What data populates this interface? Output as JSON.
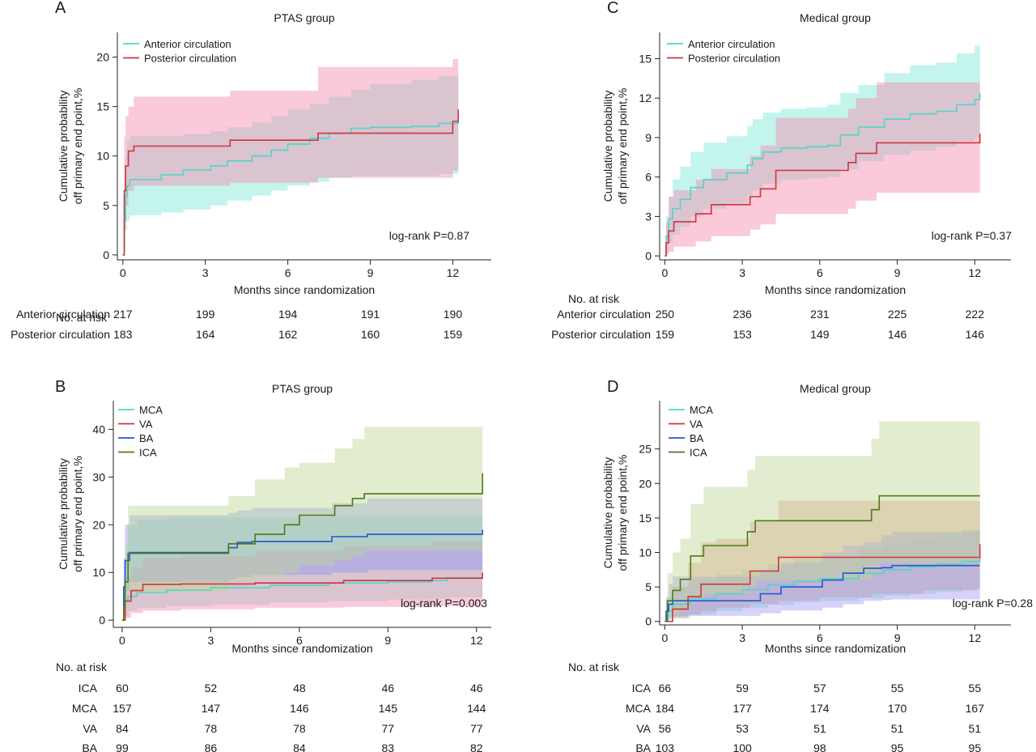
{
  "chart_data": [
    {
      "id": "A",
      "panel_letter": "A",
      "type": "line",
      "title": "PTAS group",
      "xlabel": "Months since randomization",
      "ylabel": [
        "Cumulative probability",
        "off primary end point,%"
      ],
      "xticks": [
        0,
        3,
        6,
        9,
        12
      ],
      "yticks": [
        0,
        5,
        10,
        15,
        20
      ],
      "xlim": [
        -0.2,
        13.4
      ],
      "ylim": [
        -0.5,
        22.5
      ],
      "annotation": "log-rank P=0.87",
      "legend_position": "top-left",
      "series": [
        {
          "name": "Anterior circulation",
          "color": "#4fd6c8",
          "band_color": "#7be8d8",
          "x": [
            0,
            0.05,
            0.1,
            0.15,
            0.25,
            1.4,
            2.2,
            3.2,
            3.8,
            4.7,
            5.4,
            6.0,
            6.8,
            7.5,
            8.3,
            9.0,
            10.5,
            11.5,
            12.2
          ],
          "y": [
            0,
            3.5,
            6.0,
            7.0,
            7.6,
            8.1,
            8.6,
            9.0,
            9.5,
            10.0,
            10.6,
            11.2,
            11.8,
            12.3,
            12.8,
            12.9,
            13.0,
            13.3,
            13.7
          ],
          "lower": [
            0,
            0.5,
            2.5,
            3.5,
            4.0,
            4.3,
            4.6,
            5.0,
            5.5,
            6.0,
            6.5,
            7.0,
            7.4,
            7.8,
            8.0,
            8.0,
            8.0,
            8.2,
            8.3
          ],
          "upper": [
            0,
            7.0,
            10.0,
            11.5,
            12.0,
            12.0,
            12.2,
            12.5,
            12.9,
            13.4,
            14.0,
            14.7,
            15.3,
            16.0,
            16.7,
            17.3,
            17.7,
            18.1,
            18.3
          ]
        },
        {
          "name": "Posterior circulation",
          "color": "#d3323c",
          "band_color": "#f48aac",
          "x": [
            0,
            0.05,
            0.1,
            0.2,
            0.4,
            3.9,
            7.1,
            12.0,
            12.2
          ],
          "y": [
            0,
            6.5,
            9.0,
            10.5,
            11.0,
            11.6,
            12.3,
            13.5,
            14.7
          ],
          "lower": [
            0,
            2.5,
            5.0,
            6.5,
            7.0,
            7.3,
            7.8,
            8.5,
            8.5
          ],
          "upper": [
            0,
            12.0,
            14.0,
            15.0,
            16.0,
            16.6,
            19.0,
            19.8,
            19.8
          ]
        }
      ],
      "risk_table": {
        "heading": "No. at risk",
        "rows": [
          {
            "label": "Anterior circulation",
            "values": [
              "217",
              "199",
              "194",
              "191",
              "190"
            ]
          },
          {
            "label": "Posterior circulation",
            "values": [
              "183",
              "164",
              "162",
              "160",
              "159"
            ]
          }
        ]
      }
    },
    {
      "id": "C",
      "panel_letter": "C",
      "type": "line",
      "title": "Medical group",
      "xlabel": "Months since randomization",
      "ylabel": [
        "Cumulative probability",
        "off primary end point,%"
      ],
      "xticks": [
        0,
        3,
        6,
        9,
        12
      ],
      "yticks": [
        0,
        3,
        6,
        9,
        12,
        15
      ],
      "xlim": [
        -0.2,
        13.4
      ],
      "ylim": [
        -0.3,
        17.0
      ],
      "annotation": "log-rank P=0.37",
      "legend_position": "top-left",
      "series": [
        {
          "name": "Anterior circulation",
          "color": "#4fd6c8",
          "band_color": "#7be8d8",
          "x": [
            0,
            0.05,
            0.15,
            0.3,
            0.6,
            1.0,
            1.5,
            2.4,
            3.2,
            3.4,
            3.8,
            4.5,
            5.5,
            6.3,
            6.8,
            7.5,
            8.5,
            9.5,
            10.5,
            11.3,
            12.0,
            12.2
          ],
          "y": [
            0,
            1.5,
            2.8,
            3.6,
            4.3,
            5.2,
            5.8,
            6.3,
            6.9,
            7.4,
            7.9,
            8.2,
            8.3,
            8.4,
            9.2,
            9.8,
            10.4,
            10.8,
            11.0,
            11.5,
            11.9,
            12.4
          ],
          "lower": [
            0,
            0.2,
            1.0,
            1.6,
            2.2,
            3.0,
            3.6,
            4.0,
            4.6,
            5.0,
            5.5,
            5.8,
            5.9,
            6.0,
            6.6,
            7.2,
            7.7,
            8.0,
            8.3,
            8.7,
            9.0,
            9.3
          ],
          "upper": [
            0,
            3.0,
            4.5,
            5.8,
            6.8,
            7.9,
            8.6,
            9.1,
            9.9,
            10.4,
            10.9,
            11.2,
            11.3,
            11.5,
            12.4,
            13.0,
            13.9,
            14.5,
            14.7,
            15.4,
            16.0,
            16.4
          ]
        },
        {
          "name": "Posterior circulation",
          "color": "#d3323c",
          "band_color": "#f48aac",
          "x": [
            0,
            0.05,
            0.15,
            0.35,
            1.2,
            1.8,
            3.3,
            3.7,
            4.3,
            7.1,
            7.4,
            8.2,
            12.2
          ],
          "y": [
            0,
            1.0,
            1.9,
            2.6,
            3.2,
            3.9,
            4.5,
            5.1,
            6.5,
            7.1,
            7.8,
            8.6,
            9.3
          ],
          "lower": [
            0,
            0.1,
            0.3,
            0.7,
            1.1,
            1.5,
            2.0,
            2.4,
            3.2,
            3.6,
            4.2,
            4.8,
            3.9
          ],
          "upper": [
            0,
            2.5,
            4.5,
            5.0,
            5.8,
            6.6,
            7.6,
            8.4,
            10.5,
            11.2,
            12.0,
            13.2,
            13.2
          ]
        }
      ],
      "risk_table": {
        "heading": "No. at risk",
        "rows": [
          {
            "label": "Anterior circulation",
            "values": [
              "250",
              "236",
              "231",
              "225",
              "222"
            ]
          },
          {
            "label": "Posterior circulation",
            "values": [
              "159",
              "153",
              "149",
              "146",
              "146"
            ]
          }
        ]
      }
    },
    {
      "id": "B",
      "panel_letter": "B",
      "type": "line",
      "title": "PTAS group",
      "xlabel": "Months since randomization",
      "ylabel": [
        "Cumulative probability",
        "off primary end point,%"
      ],
      "xticks": [
        0,
        3,
        6,
        9,
        12
      ],
      "yticks": [
        0,
        10,
        20,
        30,
        40
      ],
      "xlim": [
        -0.3,
        12.5
      ],
      "ylim": [
        -1.5,
        46.0
      ],
      "annotation": "log-rank P=0.003",
      "legend_position": "top-left",
      "series": [
        {
          "name": "MCA",
          "color": "#4fd6c8",
          "band_color": "#7be8d8",
          "x": [
            0,
            0.1,
            0.2,
            0.5,
            1.5,
            3.0,
            5.0,
            7.0,
            9.0,
            10.5,
            11.0,
            12.2
          ],
          "y": [
            0,
            4.0,
            5.0,
            5.8,
            6.3,
            6.8,
            7.3,
            7.8,
            8.0,
            8.3,
            8.9,
            8.9
          ],
          "lower": [
            0,
            1.0,
            2.0,
            2.5,
            3.0,
            3.3,
            3.7,
            4.0,
            4.3,
            4.5,
            4.8,
            4.8
          ],
          "upper": [
            0,
            14.0,
            20.0,
            21.0,
            21.5,
            21.5,
            21.5,
            22.0,
            22.0,
            22.0,
            22.0,
            22.0
          ]
        },
        {
          "name": "VA",
          "color": "#d3323c",
          "band_color": "#f48aac",
          "x": [
            0,
            0.1,
            0.3,
            0.7,
            2.0,
            4.5,
            7.5,
            10.5,
            12.2
          ],
          "y": [
            0,
            4.0,
            6.2,
            7.5,
            7.6,
            7.8,
            8.3,
            8.8,
            10.0
          ],
          "lower": [
            0,
            0.5,
            1.5,
            2.0,
            2.3,
            2.6,
            2.8,
            3.0,
            3.0
          ],
          "upper": [
            0,
            9.0,
            11.0,
            13.0,
            13.5,
            14.5,
            15.5,
            16.5,
            18.0
          ]
        },
        {
          "name": "BA",
          "color": "#2456d6",
          "band_color": "#8e97f2",
          "x": [
            0,
            0.05,
            0.1,
            0.25,
            3.6,
            3.9,
            4.4,
            7.1,
            8.3,
            12.2
          ],
          "y": [
            0,
            7.0,
            12.5,
            14.2,
            15.2,
            16.3,
            16.5,
            17.5,
            18.0,
            19.0
          ],
          "lower": [
            0,
            2.0,
            6.0,
            8.0,
            8.5,
            9.0,
            9.5,
            10.0,
            10.5,
            11.0
          ],
          "upper": [
            0,
            13.0,
            20.0,
            22.0,
            22.5,
            23.0,
            23.5,
            24.5,
            25.5,
            27.5
          ]
        },
        {
          "name": "ICA",
          "color": "#4e7a16",
          "band_color": "#bfd694",
          "x": [
            0,
            0.05,
            0.1,
            0.2,
            3.6,
            4.5,
            5.5,
            6.0,
            7.2,
            7.8,
            8.2,
            12.1,
            12.2
          ],
          "y": [
            0,
            3.0,
            8.0,
            14.0,
            16.0,
            18.0,
            20.0,
            22.0,
            24.0,
            25.5,
            26.5,
            26.5,
            30.8
          ],
          "lower": [
            0,
            0.5,
            3.0,
            6.0,
            8.0,
            9.0,
            10.0,
            11.5,
            12.5,
            13.5,
            14.5,
            14.5,
            16.0
          ],
          "upper": [
            0,
            8.0,
            16.0,
            24.0,
            26.0,
            29.5,
            32.0,
            33.0,
            36.0,
            38.0,
            40.5,
            40.5,
            40.5
          ]
        }
      ],
      "risk_table": {
        "heading": "No. at risk",
        "rows": [
          {
            "label": "ICA",
            "values": [
              "60",
              "52",
              "48",
              "46",
              "46"
            ]
          },
          {
            "label": "MCA",
            "values": [
              "157",
              "147",
              "146",
              "145",
              "144"
            ]
          },
          {
            "label": "VA",
            "values": [
              "84",
              "78",
              "78",
              "77",
              "77"
            ]
          },
          {
            "label": "BA",
            "values": [
              "99",
              "86",
              "84",
              "83",
              "82"
            ]
          }
        ]
      }
    },
    {
      "id": "D",
      "panel_letter": "D",
      "type": "line",
      "title": "Medical group",
      "xlabel": "Months since randomization",
      "ylabel": [
        "Cumulative probability",
        "off primary end point,%"
      ],
      "xticks": [
        0,
        3,
        6,
        9,
        12
      ],
      "yticks": [
        0,
        5,
        10,
        15,
        20,
        25
      ],
      "xlim": [
        -0.2,
        13.4
      ],
      "ylim": [
        -0.5,
        32.0
      ],
      "annotation": "log-rank P=0.28",
      "legend_position": "top-left",
      "series": [
        {
          "name": "MCA",
          "color": "#4fd6c8",
          "band_color": "#7be8d8",
          "x": [
            0,
            0.1,
            0.3,
            1.0,
            2.0,
            3.0,
            4.0,
            5.0,
            6.0,
            7.5,
            8.5,
            9.5,
            10.5,
            11.5,
            12.2
          ],
          "y": [
            0,
            1.5,
            2.5,
            3.3,
            4.0,
            4.6,
            5.3,
            5.8,
            6.2,
            7.0,
            7.5,
            7.9,
            8.3,
            8.7,
            9.4
          ],
          "lower": [
            0,
            0.2,
            0.5,
            1.0,
            1.5,
            2.0,
            2.4,
            2.8,
            3.0,
            3.4,
            3.7,
            4.0,
            4.3,
            4.6,
            5.0
          ],
          "upper": [
            0,
            3.5,
            5.0,
            6.0,
            6.8,
            7.5,
            8.3,
            9.0,
            9.5,
            10.5,
            11.3,
            12.0,
            12.7,
            13.3,
            14.2
          ]
        },
        {
          "name": "VA",
          "color": "#d3323c",
          "band_color": "#e6948a",
          "x": [
            0,
            0.3,
            0.9,
            1.4,
            2.0,
            3.3,
            4.4,
            6.0,
            8.0,
            10.0,
            12.1,
            12.2
          ],
          "y": [
            0,
            1.8,
            3.6,
            5.4,
            5.4,
            7.3,
            9.3,
            9.3,
            9.3,
            9.3,
            9.3,
            11.2
          ],
          "lower": [
            0,
            0.5,
            1.0,
            1.5,
            2.0,
            2.5,
            3.0,
            3.5,
            4.0,
            4.5,
            5.0,
            5.2
          ],
          "upper": [
            0,
            5.0,
            8.5,
            11.5,
            12.0,
            14.5,
            17.5,
            17.5,
            17.5,
            17.5,
            17.5,
            17.5
          ]
        },
        {
          "name": "BA",
          "color": "#2456d6",
          "band_color": "#a39cf2",
          "x": [
            0,
            0.05,
            0.15,
            0.3,
            3.7,
            4.5,
            6.1,
            6.9,
            7.7,
            8.4,
            8.8,
            12.2
          ],
          "y": [
            0,
            1.5,
            2.5,
            3.0,
            4.0,
            5.0,
            6.0,
            7.0,
            7.7,
            7.8,
            8.1,
            8.1
          ],
          "lower": [
            0,
            0.2,
            0.5,
            0.8,
            1.2,
            1.6,
            2.0,
            2.5,
            3.0,
            3.1,
            3.2,
            3.3
          ],
          "upper": [
            0,
            3.5,
            5.5,
            6.5,
            7.5,
            8.5,
            10.0,
            11.0,
            11.5,
            12.5,
            13.0,
            14.0
          ]
        },
        {
          "name": "ICA",
          "color": "#4e7a16",
          "band_color": "#bfd694",
          "x": [
            0,
            0.1,
            0.3,
            0.6,
            1.0,
            1.5,
            3.2,
            3.5,
            8.0,
            8.3,
            12.2
          ],
          "y": [
            0,
            3.0,
            4.5,
            6.1,
            9.5,
            11.0,
            13.0,
            14.6,
            16.2,
            18.2,
            18.2
          ],
          "lower": [
            0,
            0.5,
            1.0,
            1.6,
            3.0,
            4.0,
            5.0,
            6.0,
            7.0,
            8.5,
            8.5
          ],
          "upper": [
            0,
            7.0,
            10.0,
            12.0,
            17.0,
            19.5,
            22.0,
            24.0,
            26.5,
            29.0,
            29.0
          ]
        }
      ],
      "risk_table": {
        "heading": "No. at risk",
        "rows": [
          {
            "label": "ICA",
            "values": [
              "66",
              "59",
              "57",
              "55",
              "55"
            ]
          },
          {
            "label": "MCA",
            "values": [
              "184",
              "177",
              "174",
              "170",
              "167"
            ]
          },
          {
            "label": "VA",
            "values": [
              "56",
              "53",
              "51",
              "51",
              "51"
            ]
          },
          {
            "label": "BA",
            "values": [
              "103",
              "100",
              "98",
              "95",
              "95"
            ]
          }
        ]
      }
    }
  ]
}
